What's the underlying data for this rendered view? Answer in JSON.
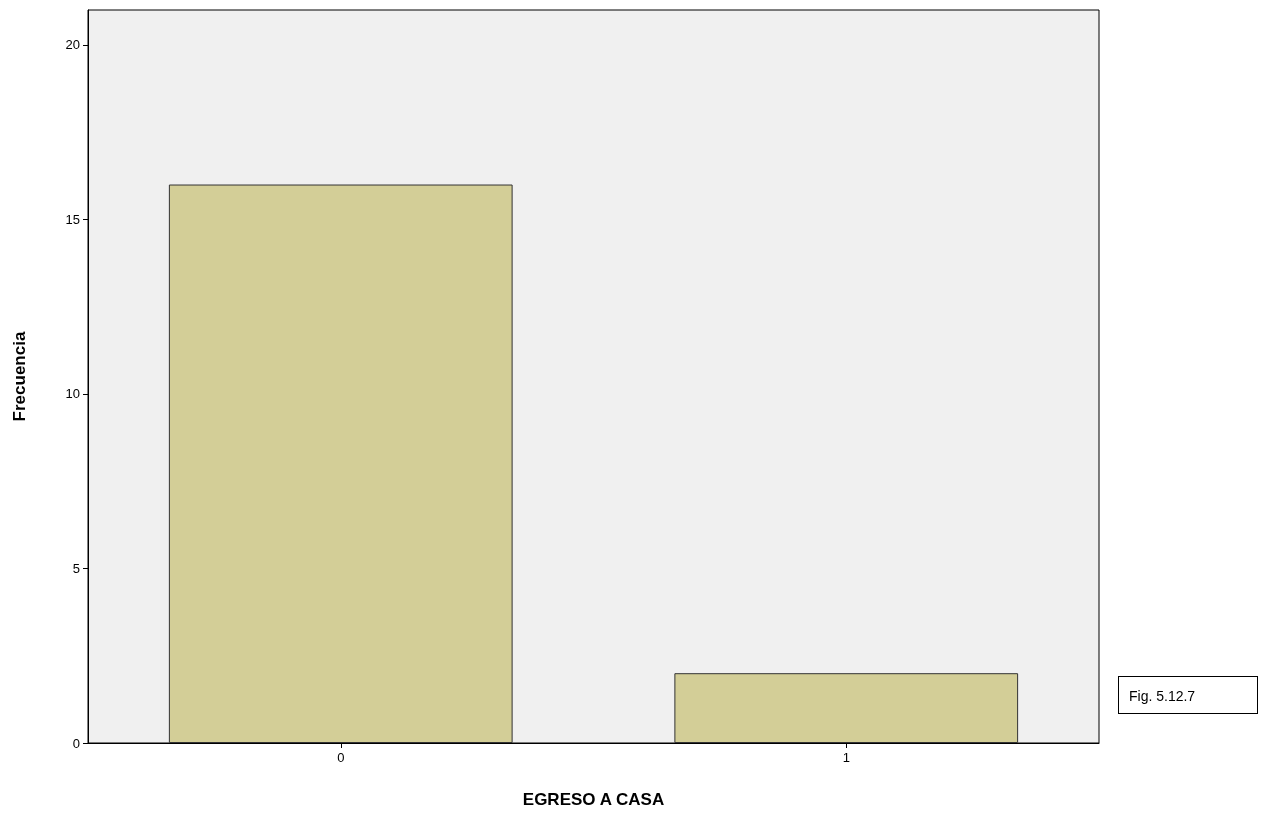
{
  "chart_data": {
    "type": "bar",
    "xlabel": "EGRESO A CASA",
    "ylabel": "Frecuencia",
    "categories": [
      "0",
      "1"
    ],
    "values": [
      16,
      2
    ],
    "color": "#d3ce97",
    "ylim": [
      0,
      21
    ],
    "yticks": [
      0,
      5,
      10,
      15,
      20
    ],
    "grid": false,
    "annotations": [
      "Fig. 5.12.7"
    ]
  }
}
